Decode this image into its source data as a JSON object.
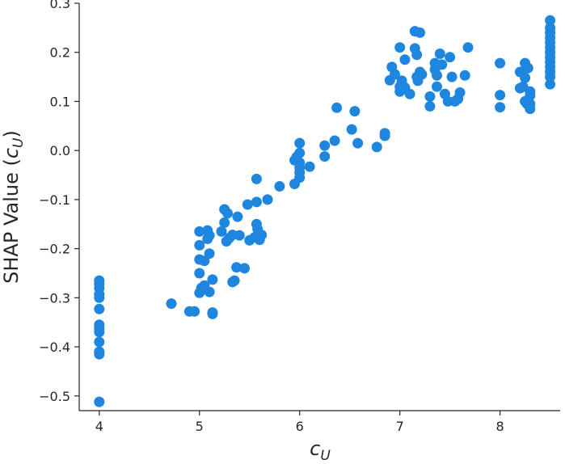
{
  "chart_data": {
    "type": "scatter",
    "title": "",
    "xlabel": "c_U",
    "ylabel": "SHAP Value (c_U)",
    "xlim": [
      3.8,
      8.6
    ],
    "ylim": [
      -0.53,
      0.3
    ],
    "xticks": [
      4,
      5,
      6,
      7,
      8
    ],
    "yticks": [
      -0.5,
      -0.4,
      -0.3,
      -0.2,
      -0.1,
      0.0,
      0.1,
      0.2,
      0.3
    ],
    "ytick_labels": [
      "−0.5",
      "−0.4",
      "−0.3",
      "−0.2",
      "−0.1",
      "0.0",
      "0.1",
      "0.2",
      "0.3"
    ],
    "grid": false,
    "marker_color": "#1f86e0",
    "points": [
      [
        4.0,
        -0.265
      ],
      [
        4.0,
        -0.272
      ],
      [
        4.0,
        -0.28
      ],
      [
        4.0,
        -0.293
      ],
      [
        4.0,
        -0.3
      ],
      [
        4.0,
        -0.323
      ],
      [
        4.0,
        -0.355
      ],
      [
        4.0,
        -0.363
      ],
      [
        4.0,
        -0.37
      ],
      [
        4.0,
        -0.39
      ],
      [
        4.0,
        -0.41
      ],
      [
        4.0,
        -0.415
      ],
      [
        4.0,
        -0.512
      ],
      [
        4.72,
        -0.312
      ],
      [
        4.9,
        -0.328
      ],
      [
        4.95,
        -0.328
      ],
      [
        5.0,
        -0.165
      ],
      [
        5.0,
        -0.193
      ],
      [
        5.0,
        -0.222
      ],
      [
        5.0,
        -0.25
      ],
      [
        5.0,
        -0.29
      ],
      [
        5.02,
        -0.28
      ],
      [
        5.05,
        -0.225
      ],
      [
        5.05,
        -0.275
      ],
      [
        5.08,
        -0.163
      ],
      [
        5.08,
        -0.18
      ],
      [
        5.1,
        -0.173
      ],
      [
        5.1,
        -0.21
      ],
      [
        5.1,
        -0.288
      ],
      [
        5.13,
        -0.263
      ],
      [
        5.13,
        -0.33
      ],
      [
        5.13,
        -0.333
      ],
      [
        5.22,
        -0.165
      ],
      [
        5.25,
        -0.12
      ],
      [
        5.25,
        -0.147
      ],
      [
        5.27,
        -0.185
      ],
      [
        5.28,
        -0.128
      ],
      [
        5.3,
        -0.178
      ],
      [
        5.33,
        -0.268
      ],
      [
        5.33,
        -0.172
      ],
      [
        5.35,
        -0.265
      ],
      [
        5.37,
        -0.238
      ],
      [
        5.38,
        -0.135
      ],
      [
        5.4,
        -0.173
      ],
      [
        5.45,
        -0.24
      ],
      [
        5.48,
        -0.11
      ],
      [
        5.5,
        -0.183
      ],
      [
        5.55,
        -0.177
      ],
      [
        5.57,
        -0.105
      ],
      [
        5.57,
        -0.058
      ],
      [
        5.57,
        -0.15
      ],
      [
        5.58,
        -0.16
      ],
      [
        5.6,
        -0.182
      ],
      [
        5.62,
        -0.172
      ],
      [
        5.68,
        -0.1
      ],
      [
        5.8,
        -0.073
      ],
      [
        5.95,
        -0.068
      ],
      [
        5.95,
        -0.02
      ],
      [
        5.97,
        -0.013
      ],
      [
        6.0,
        0.015
      ],
      [
        6.0,
        -0.005
      ],
      [
        6.0,
        -0.025
      ],
      [
        6.0,
        -0.035
      ],
      [
        6.0,
        -0.045
      ],
      [
        6.0,
        -0.055
      ],
      [
        6.1,
        -0.033
      ],
      [
        6.25,
        -0.012
      ],
      [
        6.25,
        0.01
      ],
      [
        6.35,
        0.02
      ],
      [
        6.37,
        0.087
      ],
      [
        6.52,
        0.043
      ],
      [
        6.55,
        0.08
      ],
      [
        6.58,
        0.015
      ],
      [
        6.77,
        0.007
      ],
      [
        6.85,
        0.03
      ],
      [
        6.85,
        0.035
      ],
      [
        6.9,
        0.143
      ],
      [
        6.92,
        0.17
      ],
      [
        6.95,
        0.155
      ],
      [
        7.0,
        0.13
      ],
      [
        7.0,
        0.12
      ],
      [
        7.0,
        0.21
      ],
      [
        7.02,
        0.142
      ],
      [
        7.05,
        0.128
      ],
      [
        7.05,
        0.185
      ],
      [
        7.1,
        0.115
      ],
      [
        7.15,
        0.243
      ],
      [
        7.15,
        0.208
      ],
      [
        7.17,
        0.195
      ],
      [
        7.17,
        0.15
      ],
      [
        7.18,
        0.142
      ],
      [
        7.2,
        0.24
      ],
      [
        7.2,
        0.16
      ],
      [
        7.22,
        0.155
      ],
      [
        7.3,
        0.11
      ],
      [
        7.3,
        0.09
      ],
      [
        7.35,
        0.178
      ],
      [
        7.35,
        0.165
      ],
      [
        7.37,
        0.153
      ],
      [
        7.37,
        0.13
      ],
      [
        7.4,
        0.197
      ],
      [
        7.42,
        0.175
      ],
      [
        7.45,
        0.115
      ],
      [
        7.48,
        0.1
      ],
      [
        7.5,
        0.19
      ],
      [
        7.52,
        0.15
      ],
      [
        7.55,
        0.1
      ],
      [
        7.58,
        0.105
      ],
      [
        7.6,
        0.118
      ],
      [
        7.65,
        0.153
      ],
      [
        7.68,
        0.21
      ],
      [
        8.0,
        0.178
      ],
      [
        8.0,
        0.113
      ],
      [
        8.0,
        0.088
      ],
      [
        8.2,
        0.16
      ],
      [
        8.2,
        0.127
      ],
      [
        8.23,
        0.13
      ],
      [
        8.25,
        0.178
      ],
      [
        8.25,
        0.148
      ],
      [
        8.25,
        0.1
      ],
      [
        8.27,
        0.095
      ],
      [
        8.28,
        0.168
      ],
      [
        8.3,
        0.112
      ],
      [
        8.3,
        0.095
      ],
      [
        8.3,
        0.085
      ],
      [
        8.3,
        0.12
      ],
      [
        8.5,
        0.265
      ],
      [
        8.5,
        0.25
      ],
      [
        8.5,
        0.24
      ],
      [
        8.5,
        0.23
      ],
      [
        8.5,
        0.22
      ],
      [
        8.5,
        0.21
      ],
      [
        8.5,
        0.2
      ],
      [
        8.5,
        0.19
      ],
      [
        8.5,
        0.18
      ],
      [
        8.5,
        0.17
      ],
      [
        8.5,
        0.16
      ],
      [
        8.5,
        0.15
      ],
      [
        8.5,
        0.135
      ]
    ]
  }
}
